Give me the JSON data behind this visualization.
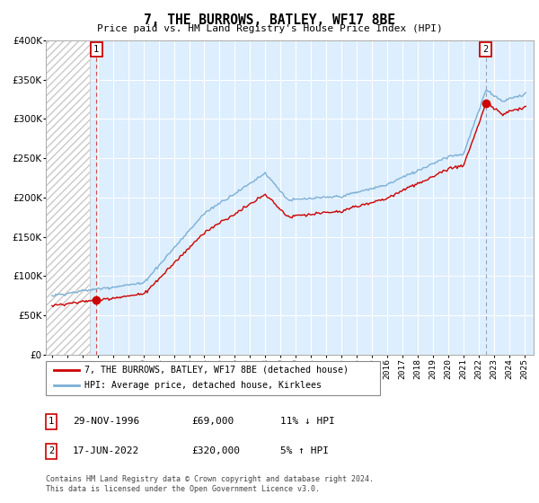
{
  "title": "7, THE BURROWS, BATLEY, WF17 8BE",
  "subtitle": "Price paid vs. HM Land Registry's House Price Index (HPI)",
  "ylim": [
    0,
    400000
  ],
  "yticks": [
    0,
    50000,
    100000,
    150000,
    200000,
    250000,
    300000,
    350000,
    400000
  ],
  "hpi_color": "#7bafd4",
  "price_color": "#cc0000",
  "bg_color": "#ddeeff",
  "hatch_color": "#c8c8c8",
  "sale1_year": 1996.92,
  "sale1_price": 69000,
  "sale1_label": "1",
  "sale2_year": 2022.46,
  "sale2_price": 320000,
  "sale2_label": "2",
  "legend_line1": "7, THE BURROWS, BATLEY, WF17 8BE (detached house)",
  "legend_line2": "HPI: Average price, detached house, Kirklees",
  "table_row1_num": "1",
  "table_row1_date": "29-NOV-1996",
  "table_row1_price": "£69,000",
  "table_row1_hpi": "11% ↓ HPI",
  "table_row2_num": "2",
  "table_row2_date": "17-JUN-2022",
  "table_row2_price": "£320,000",
  "table_row2_hpi": "5% ↑ HPI",
  "footnote": "Contains HM Land Registry data © Crown copyright and database right 2024.\nThis data is licensed under the Open Government Licence v3.0.",
  "hatch_end": 1996.5,
  "xlim_left": 1993.6,
  "xlim_right": 2025.6
}
